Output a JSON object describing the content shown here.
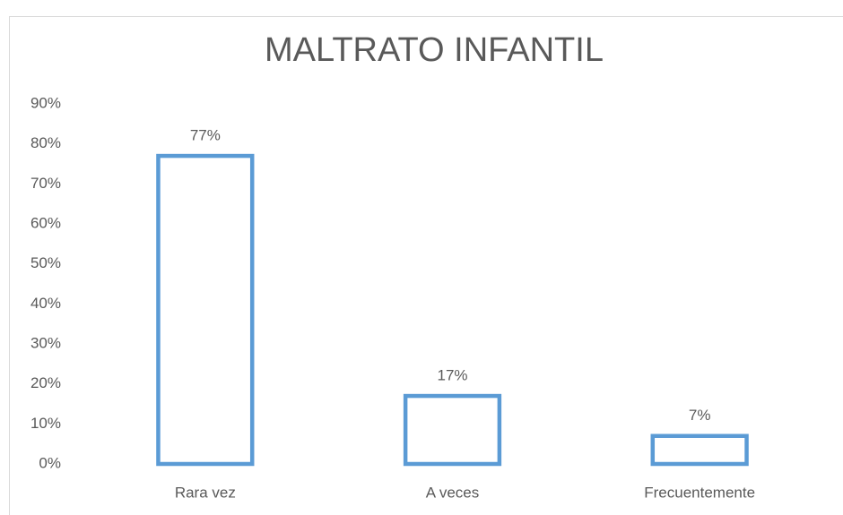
{
  "chart_data": {
    "type": "bar",
    "title": "MALTRATO INFANTIL",
    "categories": [
      "Rara vez",
      "A veces",
      "Frecuentemente"
    ],
    "values": [
      77,
      17,
      7
    ],
    "value_labels": [
      "77%",
      "17%",
      "7%"
    ],
    "color": "#5b9bd5",
    "ylim": [
      0,
      90
    ],
    "yticks": [
      {
        "value": 0,
        "label": "0%"
      },
      {
        "value": 10,
        "label": "10%"
      },
      {
        "value": 20,
        "label": "20%"
      },
      {
        "value": 30,
        "label": "30%"
      },
      {
        "value": 40,
        "label": "40%"
      },
      {
        "value": 50,
        "label": "50%"
      },
      {
        "value": 60,
        "label": "60%"
      },
      {
        "value": 70,
        "label": "70%"
      },
      {
        "value": 80,
        "label": "80%"
      },
      {
        "value": 90,
        "label": "90%"
      }
    ],
    "grid": false
  }
}
